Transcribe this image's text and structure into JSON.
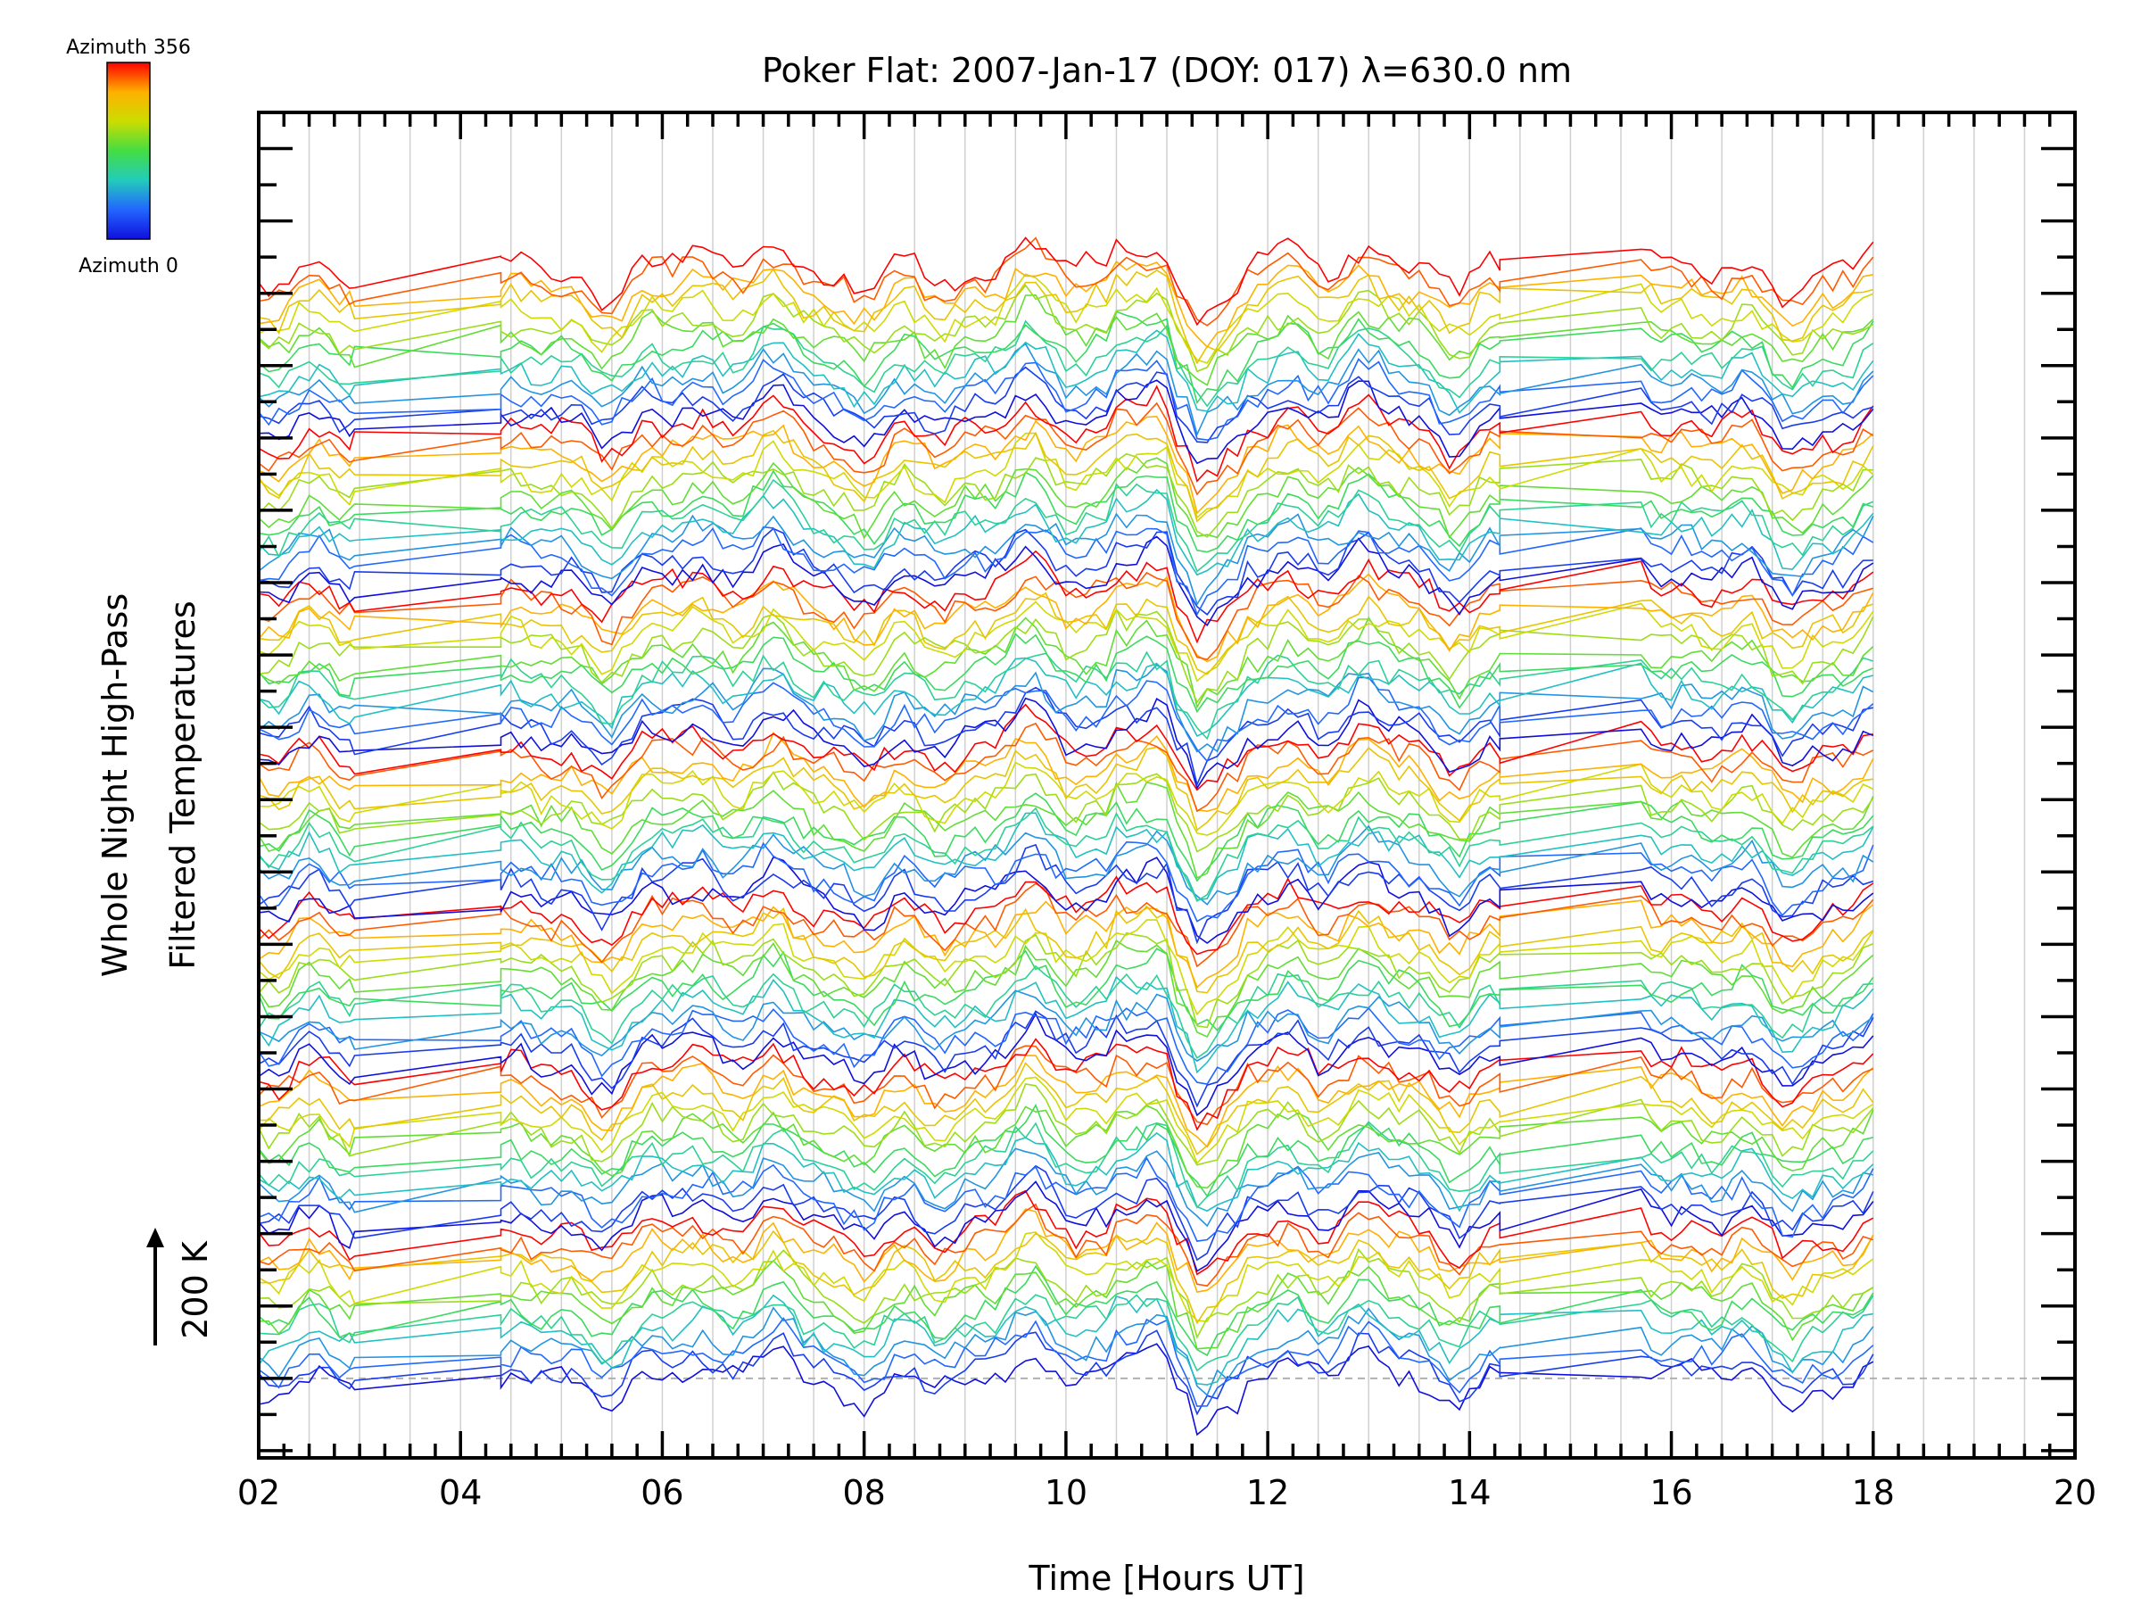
{
  "chart_data": {
    "type": "line",
    "title": "Poker Flat: 2007-Jan-17 (DOY: 017) λ=630.0 nm",
    "xlabel": "Time [Hours UT]",
    "ylabel_line1": "Whole Night High-Pass",
    "ylabel_line2": "Filtered Temperatures",
    "scale_label": "200 K",
    "xlim": [
      2,
      20
    ],
    "xticks": [
      "02",
      "04",
      "06",
      "08",
      "10",
      "12",
      "14",
      "16",
      "18",
      "20"
    ],
    "colorbar": {
      "top_label": "Azimuth 356",
      "bottom_label": "Azimuth 0",
      "colors": [
        "#ff0000",
        "#ffb000",
        "#ccdd00",
        "#44dd44",
        "#22ccbb",
        "#2266ff",
        "#1010dd"
      ]
    },
    "data_start_hour": 2.0,
    "data_end_hour": 18.0,
    "gap_hours": [
      [
        2.95,
        4.4
      ],
      [
        14.3,
        15.7
      ]
    ],
    "num_traces": 98,
    "trace_offset_K": 36,
    "baseline_offset_K": 0,
    "ylim_K": [
      -110,
      1750
    ],
    "series_description": "Stacked high-pass filtered temperature traces, one per azimuth, coloured by azimuth (0 = blue → 356 = red)"
  },
  "colors": {
    "axis": "#000000",
    "grid": "#d0d0d0",
    "baseline": "#b0b0b0"
  }
}
